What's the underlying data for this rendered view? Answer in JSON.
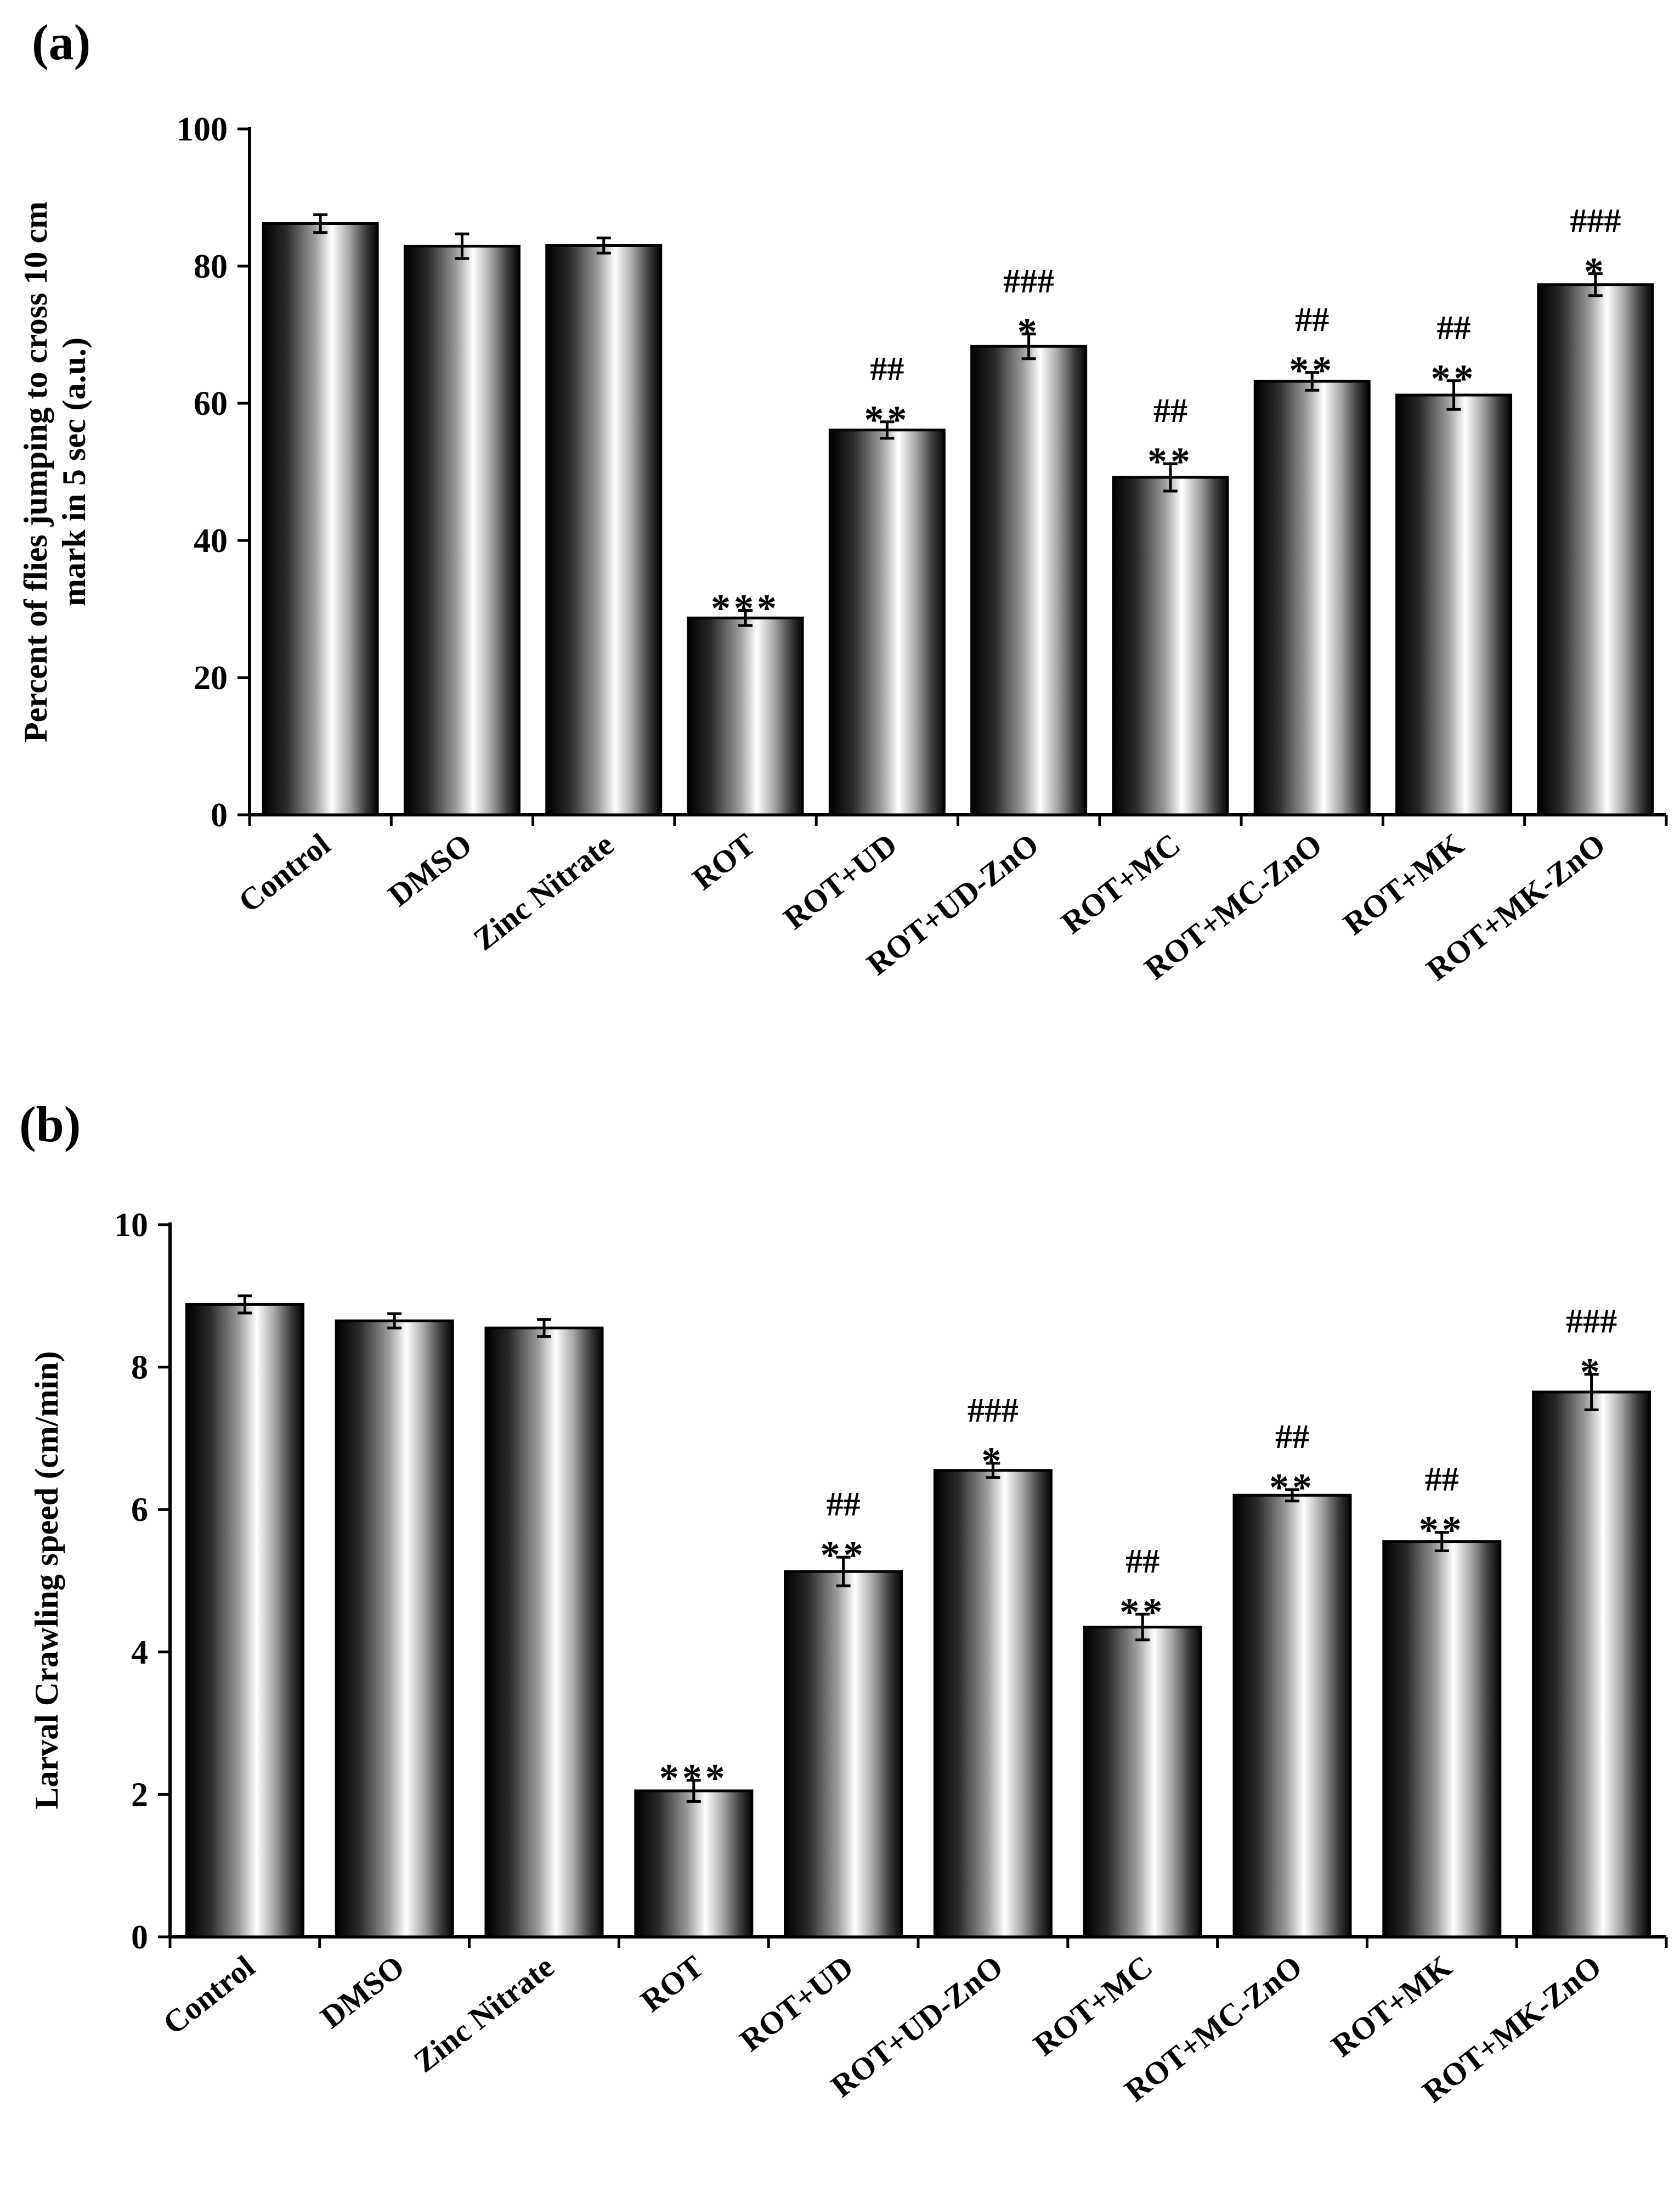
{
  "chart_data": [
    {
      "panel_label": "(a)",
      "type": "bar",
      "categories": [
        "Control",
        "DMSO",
        "Zinc Nitrate",
        "ROT",
        "ROT+UD",
        "ROT+UD-ZnO",
        "ROT+MC",
        "ROT+MC-ZnO",
        "ROT+MK",
        "ROT+MK-ZnO"
      ],
      "values": [
        86.2,
        82.9,
        83.0,
        28.7,
        56.1,
        68.3,
        49.2,
        63.2,
        61.2,
        77.3
      ],
      "errors": [
        1.3,
        1.8,
        1.1,
        1.1,
        1.2,
        1.8,
        2.0,
        1.3,
        2.1,
        1.6
      ],
      "annotations_hash": [
        "",
        "",
        "",
        "",
        "##",
        "###",
        "##",
        "##",
        "##",
        "###"
      ],
      "annotations_star": [
        "",
        "",
        "",
        "***",
        "**",
        "*",
        "**",
        "**",
        "**",
        "*"
      ],
      "title": "",
      "xlabel": "",
      "ylabel": [
        "Percent of flies jumping to cross 10 cm",
        "mark in 5 sec (a.u.)"
      ],
      "ylim": [
        0,
        100
      ],
      "yticks": [
        0,
        20,
        40,
        60,
        80,
        100
      ],
      "grid": false,
      "legend": "none"
    },
    {
      "panel_label": "(b)",
      "type": "bar",
      "categories": [
        "Control",
        "DMSO",
        "Zinc Nitrate",
        "ROT",
        "ROT+UD",
        "ROT+UD-ZnO",
        "ROT+MC",
        "ROT+MC-ZnO",
        "ROT+MK",
        "ROT+MK-ZnO"
      ],
      "values": [
        8.88,
        8.65,
        8.55,
        2.05,
        5.13,
        6.55,
        4.35,
        6.2,
        5.55,
        7.65
      ],
      "errors": [
        0.12,
        0.1,
        0.12,
        0.15,
        0.2,
        0.1,
        0.18,
        0.08,
        0.13,
        0.25
      ],
      "annotations_hash": [
        "",
        "",
        "",
        "",
        "##",
        "###",
        "##",
        "##",
        "##",
        "###"
      ],
      "annotations_star": [
        "",
        "",
        "",
        "***",
        "**",
        "*",
        "**",
        "**",
        "**",
        "*"
      ],
      "title": "",
      "xlabel": "",
      "ylabel": [
        "Larval Crawling speed (cm/min)"
      ],
      "ylim": [
        0,
        10
      ],
      "yticks": [
        0,
        2,
        4,
        6,
        8,
        10
      ],
      "grid": false,
      "legend": "none"
    }
  ]
}
